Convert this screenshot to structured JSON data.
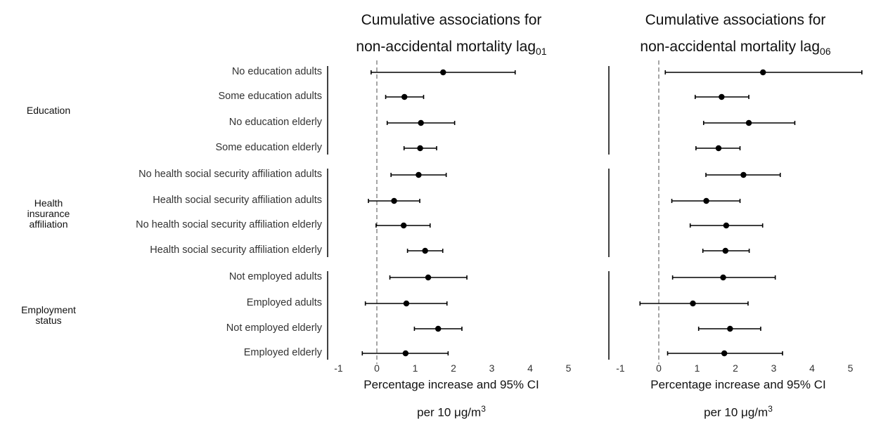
{
  "chart_data": [
    {
      "type": "scatter",
      "title": "Cumulative associations for non-accidental mortality lag",
      "title_subscript": "01",
      "xlabel": "Percentage increase and 95% CI",
      "xlabel_line2": "per 10 μg/m",
      "xlabel_sup": "3",
      "xlim": [
        -1.5,
        5.8
      ],
      "xticks": [
        "-1",
        "0",
        "1",
        "2",
        "3",
        "4",
        "5"
      ],
      "reference_line": 0,
      "grid": false,
      "groups": [
        {
          "label_lines": [
            "Education"
          ],
          "categories": [
            "No education adults",
            "Some education adults",
            "No education elderly",
            "Some education elderly"
          ]
        },
        {
          "label_lines": [
            "Health",
            "insurance",
            "affiliation"
          ],
          "categories": [
            "No health social security affiliation adults",
            "Health social security affiliation adults",
            "No health social security affiliation elderly",
            "Health social security affiliation elderly"
          ]
        },
        {
          "label_lines": [
            "Employment",
            "status"
          ],
          "categories": [
            "Not employed adults",
            "Employed adults",
            "Not employed elderly",
            "Employed elderly"
          ]
        }
      ],
      "estimates": [
        1.73,
        0.72,
        1.15,
        1.13,
        1.09,
        0.45,
        0.7,
        1.26,
        1.34,
        0.77,
        1.6,
        0.75
      ],
      "lower": [
        -0.15,
        0.23,
        0.27,
        0.71,
        0.37,
        -0.22,
        -0.02,
        0.8,
        0.34,
        -0.3,
        0.98,
        -0.38
      ],
      "upper": [
        3.61,
        1.22,
        2.03,
        1.56,
        1.81,
        1.12,
        1.39,
        1.72,
        2.35,
        1.83,
        2.22,
        1.86
      ]
    },
    {
      "type": "scatter",
      "title": "Cumulative associations for non-accidental mortality lag",
      "title_subscript": "06",
      "xlabel": "Percentage increase and 95% CI",
      "xlabel_line2": "per 10 μg/m",
      "xlabel_sup": "3",
      "xlim": [
        -1.5,
        5.8
      ],
      "xticks": [
        "-1",
        "0",
        "1",
        "2",
        "3",
        "4",
        "5"
      ],
      "reference_line": 0,
      "grid": false,
      "estimates": [
        2.72,
        1.64,
        2.35,
        1.56,
        2.21,
        1.24,
        1.76,
        1.74,
        1.68,
        0.89,
        1.86,
        1.71
      ],
      "lower": [
        0.17,
        0.95,
        1.17,
        0.97,
        1.23,
        0.34,
        0.82,
        1.15,
        0.36,
        -0.49,
        1.04,
        0.23
      ],
      "upper": [
        5.3,
        2.35,
        3.55,
        2.12,
        3.17,
        2.12,
        2.71,
        2.36,
        3.04,
        2.33,
        2.66,
        3.23
      ]
    }
  ]
}
